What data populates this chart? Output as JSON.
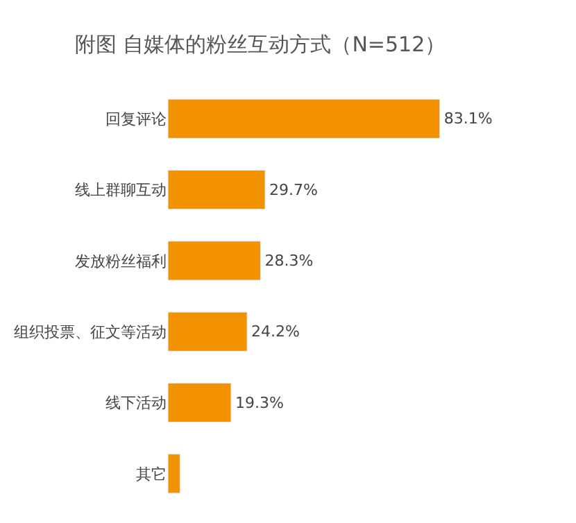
{
  "chart_data": {
    "type": "bar",
    "orientation": "horizontal",
    "title": "附图 自媒体的粉丝互动方式（N=512）",
    "categories": [
      "回复评论",
      "线上群聊互动",
      "发放粉丝福利",
      "组织投票、征文等活动",
      "线下活动",
      "其它"
    ],
    "values": [
      83.1,
      29.7,
      28.3,
      24.2,
      19.3,
      3.7
    ],
    "value_labels": [
      "83.1%",
      "29.7%",
      "28.3%",
      "24.2%",
      "19.3%",
      null
    ],
    "color": "#f39200"
  }
}
